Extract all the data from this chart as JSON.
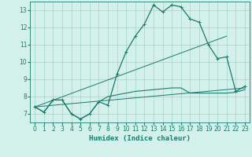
{
  "xlabel": "Humidex (Indice chaleur)",
  "background_color": "#d4f0eb",
  "grid_color": "#a0d4cc",
  "line_color": "#1a7a6e",
  "xlim": [
    -0.5,
    23.5
  ],
  "ylim": [
    6.5,
    13.5
  ],
  "yticks": [
    7,
    8,
    9,
    10,
    11,
    12,
    13
  ],
  "xticks": [
    0,
    1,
    2,
    3,
    4,
    5,
    6,
    7,
    8,
    9,
    10,
    11,
    12,
    13,
    14,
    15,
    16,
    17,
    18,
    19,
    20,
    21,
    22,
    23
  ],
  "series1_x": [
    0,
    1,
    2,
    3,
    4,
    5,
    6,
    7,
    8,
    9,
    10,
    11,
    12,
    13,
    14,
    15,
    16,
    17,
    18,
    19,
    20,
    21,
    22,
    23
  ],
  "series1_y": [
    7.4,
    7.1,
    7.8,
    7.8,
    7.0,
    6.7,
    7.0,
    7.7,
    7.5,
    9.3,
    10.6,
    11.5,
    12.2,
    13.3,
    12.9,
    13.3,
    13.2,
    12.5,
    12.3,
    11.0,
    10.2,
    10.3,
    8.3,
    8.6
  ],
  "series2_x": [
    0,
    1,
    2,
    3,
    4,
    5,
    6,
    7,
    8,
    9,
    10,
    11,
    12,
    13,
    14,
    15,
    16,
    17,
    18,
    19,
    20,
    21,
    22,
    23
  ],
  "series2_y": [
    7.4,
    7.1,
    7.8,
    7.8,
    7.0,
    6.7,
    7.0,
    7.7,
    8.0,
    8.1,
    8.2,
    8.3,
    8.35,
    8.4,
    8.45,
    8.5,
    8.5,
    8.2,
    8.2,
    8.2,
    8.2,
    8.2,
    8.25,
    8.4
  ],
  "series3_x": [
    0,
    23
  ],
  "series3_y": [
    7.4,
    8.5
  ],
  "series4_x": [
    0,
    21
  ],
  "series4_y": [
    7.4,
    11.5
  ]
}
